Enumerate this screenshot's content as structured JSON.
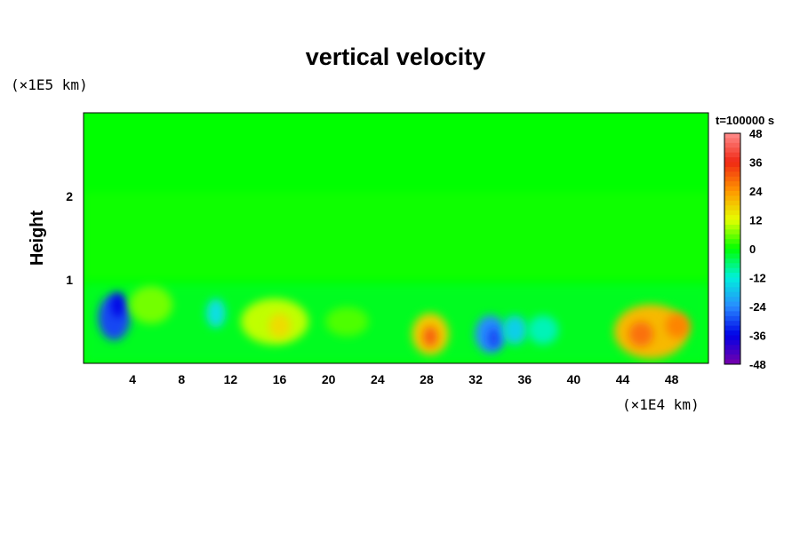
{
  "chart_data": {
    "type": "heatmap",
    "title": "vertical velocity",
    "ylabel": "Height",
    "y_unit_label": "(×1E5 km)",
    "x_unit_label": "(×1E4 km)",
    "time_label": "t=100000 s",
    "xlim": [
      0,
      51
    ],
    "ylim": [
      0,
      3
    ],
    "x_ticks": [
      "4",
      "8",
      "12",
      "16",
      "20",
      "24",
      "28",
      "32",
      "36",
      "40",
      "44",
      "48"
    ],
    "y_ticks": [
      "1",
      "2"
    ],
    "colorbar": {
      "min": -48,
      "max": 48,
      "ticks": [
        "48",
        "36",
        "24",
        "12",
        "0",
        "-12",
        "-24",
        "-36",
        "-48"
      ]
    },
    "features": [
      {
        "x": 2.5,
        "y": 0.55,
        "w": 2.6,
        "h": 0.55,
        "value": -30
      },
      {
        "x": 2.8,
        "y": 0.7,
        "w": 1.0,
        "h": 0.3,
        "value": -36
      },
      {
        "x": 5.5,
        "y": 0.7,
        "w": 3.5,
        "h": 0.45,
        "value": 6
      },
      {
        "x": 10.8,
        "y": 0.6,
        "w": 1.6,
        "h": 0.35,
        "value": -14
      },
      {
        "x": 15.6,
        "y": 0.5,
        "w": 5.5,
        "h": 0.55,
        "value": 10
      },
      {
        "x": 16.0,
        "y": 0.45,
        "w": 1.8,
        "h": 0.3,
        "value": 16
      },
      {
        "x": 21.5,
        "y": 0.5,
        "w": 3.5,
        "h": 0.35,
        "value": 4
      },
      {
        "x": 28.3,
        "y": 0.35,
        "w": 3.0,
        "h": 0.5,
        "value": 18
      },
      {
        "x": 28.3,
        "y": 0.32,
        "w": 1.2,
        "h": 0.25,
        "value": 30
      },
      {
        "x": 33.2,
        "y": 0.35,
        "w": 2.5,
        "h": 0.45,
        "value": -24
      },
      {
        "x": 33.5,
        "y": 0.3,
        "w": 1.0,
        "h": 0.25,
        "value": -30
      },
      {
        "x": 35.2,
        "y": 0.4,
        "w": 2.0,
        "h": 0.35,
        "value": -16
      },
      {
        "x": 37.5,
        "y": 0.4,
        "w": 2.5,
        "h": 0.35,
        "value": -10
      },
      {
        "x": 46.3,
        "y": 0.38,
        "w": 6.0,
        "h": 0.65,
        "value": 20
      },
      {
        "x": 45.5,
        "y": 0.35,
        "w": 2.0,
        "h": 0.3,
        "value": 28
      },
      {
        "x": 48.5,
        "y": 0.45,
        "w": 2.0,
        "h": 0.3,
        "value": 26
      }
    ]
  }
}
